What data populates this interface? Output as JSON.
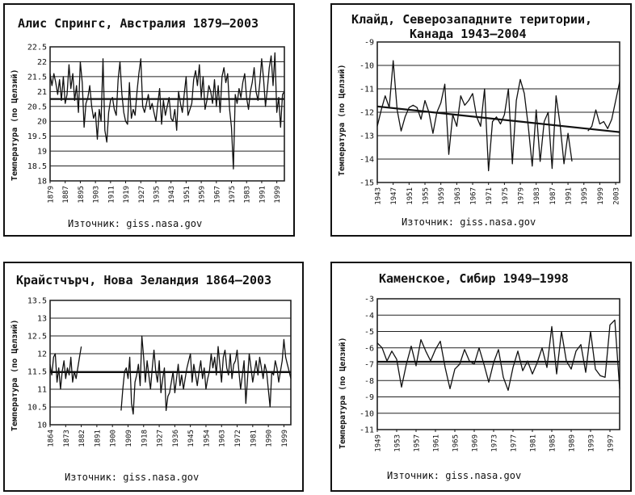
{
  "chart_data": [
    {
      "type": "line",
      "title": "Алис Спрингс, Австралия 1879–2003",
      "ylabel": "Температура (по Целзий)",
      "source": "Източник: giss.nasa.gov",
      "ylim": [
        18,
        22.5
      ],
      "yticks": [
        18,
        18.5,
        19,
        19.5,
        20,
        20.5,
        21,
        21.5,
        22,
        22.5
      ],
      "xlim": [
        1879,
        2003
      ],
      "xticks": [
        1879,
        1887,
        1895,
        1903,
        1911,
        1919,
        1927,
        1935,
        1943,
        1951,
        1959,
        1967,
        1975,
        1983,
        1991,
        1999
      ],
      "series": [
        {
          "x": [
            1879,
            1880,
            1881,
            1882,
            1883,
            1884,
            1885,
            1886,
            1887,
            1888,
            1889,
            1890,
            1891,
            1892,
            1893,
            1894,
            1895,
            1896,
            1897,
            1898,
            1899,
            1900,
            1901,
            1902,
            1903,
            1904,
            1905,
            1906,
            1907,
            1908,
            1909,
            1910,
            1911,
            1912,
            1913,
            1914,
            1915,
            1916,
            1917,
            1918,
            1919,
            1920,
            1921,
            1922,
            1923,
            1924,
            1925,
            1926,
            1927,
            1928,
            1929,
            1930,
            1931,
            1932,
            1933,
            1934,
            1935,
            1936,
            1937,
            1938,
            1939,
            1940,
            1941,
            1942,
            1943,
            1944,
            1945,
            1946,
            1947,
            1948,
            1949,
            1950,
            1951,
            1952,
            1953,
            1954,
            1955,
            1956,
            1957,
            1958,
            1959,
            1960,
            1961,
            1962,
            1963,
            1964,
            1965,
            1966,
            1967,
            1968,
            1969,
            1970,
            1971,
            1972,
            1973,
            1974,
            1975,
            1976,
            1977,
            1978,
            1979,
            1980,
            1981,
            1982,
            1983,
            1984,
            1985,
            1986,
            1987,
            1988,
            1989,
            1990,
            1991,
            1992,
            1993,
            1994,
            1995,
            1996,
            1997,
            1998,
            1999,
            2000,
            2001,
            2002,
            2003
          ],
          "y": [
            21.6,
            21.2,
            21.6,
            21.3,
            20.9,
            21.4,
            20.7,
            21.5,
            20.6,
            20.9,
            21.9,
            21.1,
            21.6,
            20.7,
            21.2,
            20.3,
            22.0,
            21.3,
            19.8,
            20.6,
            20.8,
            21.2,
            20.5,
            20.1,
            20.3,
            19.4,
            20.4,
            20.0,
            22.1,
            19.7,
            19.3,
            20.3,
            20.7,
            20.8,
            20.4,
            20.2,
            21.4,
            22.0,
            20.9,
            20.3,
            20.0,
            19.9,
            21.3,
            20.1,
            20.4,
            20.2,
            21.0,
            21.6,
            22.1,
            20.5,
            20.3,
            20.6,
            20.9,
            20.4,
            20.6,
            20.3,
            20.0,
            20.6,
            21.1,
            19.9,
            20.7,
            20.2,
            20.5,
            20.8,
            20.1,
            20.0,
            20.4,
            19.7,
            21.0,
            20.6,
            20.3,
            20.9,
            21.5,
            20.2,
            20.4,
            20.6,
            21.4,
            21.7,
            21.2,
            21.9,
            20.8,
            21.5,
            20.4,
            20.7,
            21.2,
            21.0,
            20.6,
            21.4,
            20.5,
            21.2,
            20.3,
            21.5,
            21.8,
            21.3,
            21.6,
            20.4,
            19.8,
            18.4,
            20.9,
            20.6,
            21.1,
            20.8,
            21.3,
            21.6,
            20.8,
            20.4,
            21.0,
            21.3,
            21.8,
            21.0,
            20.7,
            21.3,
            22.1,
            21.4,
            20.5,
            21.1,
            21.8,
            22.2,
            21.2,
            22.3,
            20.3,
            20.8,
            19.8,
            20.9,
            21.0
          ]
        },
        {
          "x": [
            1879,
            2003
          ],
          "y": [
            20.75,
            20.75
          ]
        }
      ]
    },
    {
      "type": "line",
      "title": "Клайд, Северозападните територии, Канада 1943–2004",
      "title_lines": [
        "Клайд, Северозападните територии,",
        "Канада 1943–2004"
      ],
      "ylabel": "Температура (по Целзий)",
      "source": "Източник: giss.nasa.gov",
      "ylim": [
        -15,
        -9
      ],
      "yticks": [
        -15,
        -14,
        -13,
        -12,
        -11,
        -10,
        -9
      ],
      "ytick_labels": [
        "-15",
        "-14",
        "-13",
        "-12",
        "-11",
        "-10",
        "-9"
      ],
      "xlim": [
        1943,
        2004
      ],
      "xticks": [
        1943,
        1947,
        1951,
        1955,
        1959,
        1963,
        1967,
        1971,
        1975,
        1979,
        1983,
        1987,
        1991,
        1995,
        1999,
        2003
      ],
      "series": [
        {
          "x": [
            1943,
            1944,
            1945,
            1946,
            1947,
            1948,
            1949,
            1950,
            1951,
            1952,
            1953,
            1954,
            1955,
            1956,
            1957,
            1958,
            1959,
            1960,
            1961,
            1962,
            1963,
            1964,
            1965,
            1966,
            1967,
            1968,
            1969,
            1970,
            1971,
            1972,
            1973,
            1974,
            1975,
            1976,
            1977,
            1978,
            1979,
            1980,
            1981,
            1982,
            1983,
            1984,
            1985,
            1986,
            1987,
            1988,
            1989,
            1990,
            1991,
            1992
          ],
          "y": [
            -12.6,
            -11.9,
            -11.3,
            -11.8,
            -9.8,
            -11.9,
            -12.8,
            -12.2,
            -11.8,
            -11.7,
            -11.8,
            -12.3,
            -11.5,
            -12.0,
            -12.9,
            -12.0,
            -11.6,
            -10.8,
            -13.8,
            -12.1,
            -12.6,
            -11.3,
            -11.7,
            -11.5,
            -11.2,
            -12.2,
            -12.6,
            -11.0,
            -14.5,
            -12.4,
            -12.2,
            -12.5,
            -12.1,
            -11.0,
            -14.2,
            -11.5,
            -10.6,
            -11.2,
            -12.6,
            -14.3,
            -11.9,
            -14.1,
            -12.4,
            -12.0,
            -14.4,
            -11.3,
            -12.5,
            -14.2,
            -12.9,
            -14.1
          ]
        },
        {
          "x": [
            1996,
            1997,
            1998,
            1999,
            2000,
            2001,
            2002,
            2003,
            2004
          ],
          "y": [
            -12.8,
            -12.6,
            -11.9,
            -12.5,
            -12.4,
            -12.7,
            -12.3,
            -11.5,
            -10.7
          ]
        },
        {
          "x": [
            1943,
            2004
          ],
          "y": [
            -11.75,
            -12.85
          ]
        }
      ]
    },
    {
      "type": "line",
      "title": "Крайстчърч, Нова Зеландия 1864–2003",
      "ylabel": "Температура (по Целзий)",
      "source": "Източник: giss.nasa.gov",
      "ylim": [
        10,
        13.5
      ],
      "yticks": [
        10,
        10.5,
        11,
        11.5,
        12,
        12.5,
        13,
        13.5
      ],
      "xlim": [
        1864,
        2003
      ],
      "xticks": [
        1864,
        1873,
        1882,
        1891,
        1900,
        1909,
        1918,
        1927,
        1936,
        1945,
        1954,
        1963,
        1972,
        1981,
        1990,
        1999
      ],
      "series": [
        {
          "x": [
            1864,
            1865,
            1866,
            1867,
            1868,
            1869,
            1870,
            1871,
            1872,
            1873,
            1874,
            1875,
            1876,
            1877,
            1878,
            1879,
            1880,
            1881,
            1882
          ],
          "y": [
            11.7,
            11.4,
            11.9,
            12.0,
            11.2,
            11.6,
            11.0,
            11.5,
            11.8,
            11.3,
            11.6,
            11.4,
            11.9,
            11.2,
            11.5,
            11.3,
            11.6,
            11.9,
            12.2
          ]
        },
        {
          "x": [
            1905,
            1906,
            1907,
            1908,
            1909,
            1910,
            1911,
            1912,
            1913,
            1914,
            1915,
            1916,
            1917,
            1918,
            1919,
            1920,
            1921,
            1922,
            1923,
            1924,
            1925,
            1926,
            1927,
            1928,
            1929,
            1930,
            1931,
            1932,
            1933,
            1934,
            1935,
            1936,
            1937,
            1938,
            1939,
            1940,
            1941,
            1942,
            1943,
            1944,
            1945,
            1946,
            1947,
            1948,
            1949,
            1950,
            1951,
            1952,
            1953,
            1954,
            1955,
            1956,
            1957,
            1958,
            1959,
            1960,
            1961,
            1962,
            1963,
            1964,
            1965,
            1966,
            1967,
            1968,
            1969,
            1970,
            1971,
            1972,
            1973,
            1974,
            1975,
            1976,
            1977,
            1978,
            1979,
            1980,
            1981,
            1982,
            1983,
            1984,
            1985,
            1986,
            1987,
            1988,
            1989,
            1990,
            1991,
            1992,
            1993,
            1994,
            1995,
            1996,
            1997,
            1998,
            1999,
            2000,
            2001,
            2002,
            2003
          ],
          "y": [
            10.4,
            11.0,
            11.5,
            11.6,
            11.3,
            11.9,
            10.6,
            10.3,
            11.2,
            11.4,
            11.7,
            11.1,
            12.5,
            11.9,
            11.2,
            11.8,
            11.4,
            11.0,
            11.6,
            12.1,
            11.5,
            11.2,
            11.8,
            10.9,
            11.3,
            11.6,
            10.4,
            10.8,
            10.9,
            11.2,
            11.5,
            10.9,
            11.3,
            11.7,
            11.1,
            11.4,
            11.0,
            11.3,
            11.6,
            11.8,
            12.0,
            11.2,
            11.7,
            11.4,
            11.1,
            11.5,
            11.8,
            11.3,
            11.6,
            11.0,
            11.3,
            11.5,
            12.0,
            11.6,
            11.9,
            11.4,
            12.2,
            11.7,
            11.2,
            11.9,
            12.1,
            11.6,
            11.4,
            12.0,
            11.3,
            11.7,
            11.8,
            12.1,
            11.5,
            11.0,
            11.4,
            11.8,
            10.6,
            11.3,
            12.0,
            11.6,
            11.2,
            11.5,
            11.8,
            11.4,
            11.9,
            11.6,
            11.3,
            11.7,
            11.5,
            11.0,
            10.5,
            11.5,
            11.4,
            11.8,
            11.6,
            11.2,
            11.5,
            11.8,
            12.4,
            11.9,
            11.7,
            11.5,
            11.3
          ]
        },
        {
          "x": [
            1864,
            2003
          ],
          "y": [
            11.48,
            11.48
          ]
        }
      ]
    },
    {
      "type": "line",
      "title": "Каменское, Сибир 1949–1998",
      "ylabel": "Температура (по Целзий)",
      "source": "Източник: giss.nasa.gov",
      "ylim": [
        -11,
        -3
      ],
      "yticks": [
        -11,
        -10,
        -9,
        -8,
        -7,
        -6,
        -5,
        -4,
        -3
      ],
      "ytick_labels": [
        "-11",
        "-10",
        "-9",
        "-8",
        "-7",
        "-6",
        "-5",
        "-4",
        "-3"
      ],
      "xlim": [
        1949,
        1999
      ],
      "xticks": [
        1949,
        1953,
        1957,
        1961,
        1965,
        1969,
        1973,
        1977,
        1981,
        1985,
        1989,
        1993,
        1997
      ],
      "series": [
        {
          "x": [
            1949,
            1950,
            1951,
            1952,
            1953,
            1954,
            1955,
            1956,
            1957,
            1958,
            1959,
            1960,
            1961,
            1962,
            1963,
            1964,
            1965,
            1966,
            1967,
            1968,
            1969,
            1970,
            1971,
            1972,
            1973,
            1974,
            1975,
            1976,
            1977,
            1978,
            1979,
            1980,
            1981,
            1982,
            1983,
            1984,
            1985,
            1986,
            1987,
            1988,
            1989,
            1990,
            1991,
            1992,
            1993,
            1994,
            1995,
            1996,
            1997,
            1998,
            1999
          ],
          "y": [
            -5.7,
            -6.0,
            -6.8,
            -6.2,
            -6.7,
            -8.4,
            -7.0,
            -5.9,
            -7.1,
            -5.5,
            -6.2,
            -6.8,
            -6.1,
            -5.6,
            -7.2,
            -8.5,
            -7.3,
            -7.0,
            -6.1,
            -6.8,
            -7.0,
            -6.0,
            -7.0,
            -8.1,
            -6.9,
            -6.1,
            -7.8,
            -8.6,
            -7.2,
            -6.2,
            -7.4,
            -6.8,
            -7.6,
            -6.9,
            -6.0,
            -7.2,
            -4.7,
            -7.6,
            -5.0,
            -6.8,
            -7.3,
            -6.2,
            -5.8,
            -7.5,
            -5.0,
            -7.3,
            -7.7,
            -7.8,
            -4.6,
            -4.3,
            -8.5
          ]
        },
        {
          "x": [
            1949,
            1999
          ],
          "y": [
            -6.85,
            -6.85
          ]
        }
      ]
    }
  ]
}
